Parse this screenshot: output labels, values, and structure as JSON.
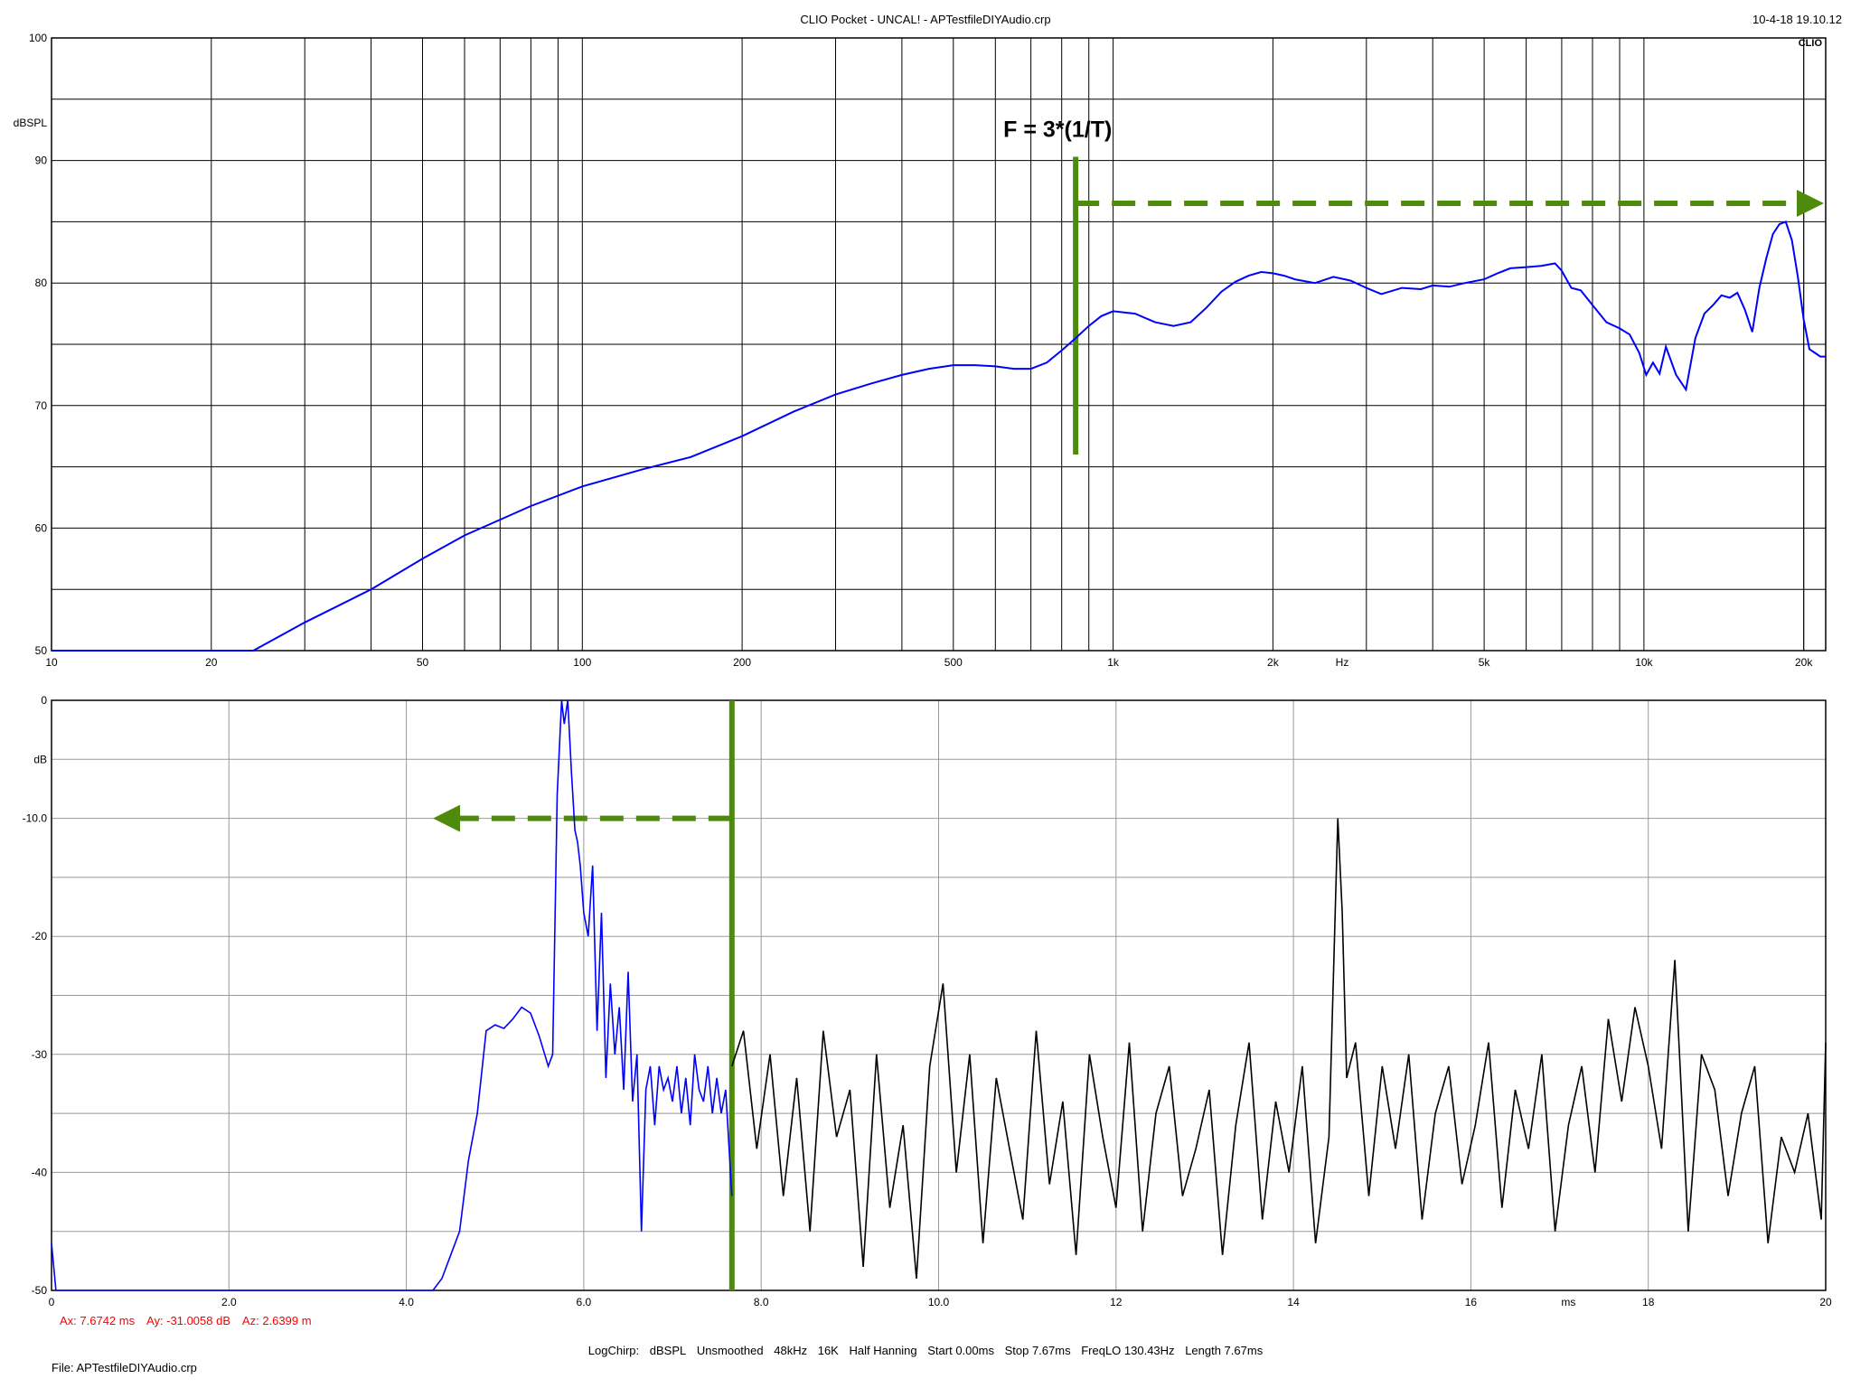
{
  "header": {
    "title": "CLIO Pocket - UNCAL! - APTestfileDIYAudio.crp",
    "datetime": "10-4-18 19.10.12",
    "logo": "CLIO"
  },
  "footer": {
    "params": [
      "LogChirp:",
      "dBSPL",
      "Unsmoothed",
      "48kHz",
      "16K",
      "Half Hanning",
      "Start 0.00ms",
      "Stop 7.67ms",
      "FreqLO 130.43Hz",
      "Length 7.67ms"
    ],
    "file": "File: APTestfileDIYAudio.crp"
  },
  "cursor_readout": {
    "ax": "Ax: 7.6742 ms",
    "ay": "Ay: -31.0058 dB",
    "az": "Az: 2.6399 m"
  },
  "colors": {
    "grid": "#000000",
    "curve": "#0000ff",
    "impulse_after_gate": "#000000",
    "annotation": "#4e8a0b",
    "cursor_text": "#ff0000"
  },
  "chart_data": [
    {
      "type": "line",
      "ylabel": "dBSPL",
      "xlabel": "Hz",
      "x_scale": "log",
      "xlim": [
        10,
        22000
      ],
      "ylim": [
        50,
        100
      ],
      "grid": true,
      "x_tick_labels": [
        {
          "v": 10,
          "t": "10"
        },
        {
          "v": 20,
          "t": "20"
        },
        {
          "v": 50,
          "t": "50"
        },
        {
          "v": 100,
          "t": "100"
        },
        {
          "v": 200,
          "t": "200"
        },
        {
          "v": 500,
          "t": "500"
        },
        {
          "v": 1000,
          "t": "1k"
        },
        {
          "v": 2000,
          "t": "2k"
        },
        {
          "v": 5000,
          "t": "5k"
        },
        {
          "v": 10000,
          "t": "10k"
        },
        {
          "v": 20000,
          "t": "20k"
        }
      ],
      "y_tick_labels": [
        {
          "v": 100,
          "t": "100"
        },
        {
          "v": 90,
          "t": "90"
        },
        {
          "v": 80,
          "t": "80"
        },
        {
          "v": 70,
          "t": "70"
        },
        {
          "v": 60,
          "t": "60"
        },
        {
          "v": 50,
          "t": "50"
        }
      ],
      "annotation": {
        "text": "F = 3*(1/T)",
        "x": 850,
        "y_from": 66,
        "y_to": 90.3,
        "arrow_y": 86.5,
        "arrow_to": 22000
      },
      "series": [
        {
          "x": [
            10,
            24,
            30,
            40,
            50,
            60,
            80,
            100,
            130,
            160,
            200,
            250,
            300,
            350,
            400,
            450,
            500,
            550,
            600,
            650,
            700,
            750,
            800,
            850,
            900,
            950,
            1000,
            1100,
            1200,
            1300,
            1400,
            1500,
            1600,
            1700,
            1800,
            1900,
            2000,
            2100,
            2200,
            2400,
            2600,
            2800,
            3000,
            3200,
            3500,
            3800,
            4000,
            4300,
            4600,
            5000,
            5300,
            5600,
            6000,
            6400,
            6800,
            7000,
            7300,
            7600,
            8000,
            8500,
            9000,
            9400,
            9800,
            10100,
            10400,
            10700,
            11000,
            11500,
            12000,
            12500,
            13000,
            13500,
            14000,
            14500,
            15000,
            15500,
            16000,
            16500,
            17000,
            17500,
            18000,
            18500,
            19000,
            19500,
            20000,
            20500,
            21000,
            21500,
            22000
          ],
          "y": [
            50,
            50,
            52.3,
            55,
            57.5,
            59.4,
            61.8,
            63.4,
            64.8,
            65.8,
            67.5,
            69.5,
            70.9,
            71.8,
            72.5,
            73,
            73.3,
            73.3,
            73.2,
            73.0,
            73.0,
            73.5,
            74.5,
            75.5,
            76.5,
            77.3,
            77.7,
            77.5,
            76.8,
            76.5,
            76.8,
            78,
            79.3,
            80.1,
            80.6,
            80.9,
            80.8,
            80.6,
            80.3,
            80.0,
            80.5,
            80.2,
            79.6,
            79.1,
            79.6,
            79.5,
            79.8,
            79.7,
            80.0,
            80.3,
            80.8,
            81.2,
            81.3,
            81.4,
            81.6,
            81.0,
            79.6,
            79.4,
            78.2,
            76.8,
            76.3,
            75.8,
            74.3,
            72.5,
            73.5,
            72.6,
            74.8,
            72.5,
            71.3,
            75.5,
            77.5,
            78.2,
            79.0,
            78.8,
            79.2,
            77.8,
            76.0,
            79.6,
            82.0,
            84.0,
            84.8,
            85.0,
            83.5,
            80.5,
            77.0,
            74.6,
            74.3,
            74.0,
            74.0
          ]
        }
      ]
    },
    {
      "type": "line",
      "ylabel": "dB",
      "xlabel": "ms",
      "xlim": [
        0,
        20
      ],
      "ylim": [
        -50,
        0
      ],
      "grid": true,
      "x_tick_labels": [
        {
          "v": 0,
          "t": "0"
        },
        {
          "v": 2,
          "t": "2.0"
        },
        {
          "v": 4,
          "t": "4.0"
        },
        {
          "v": 6,
          "t": "6.0"
        },
        {
          "v": 8,
          "t": "8.0"
        },
        {
          "v": 10,
          "t": "10.0"
        },
        {
          "v": 12,
          "t": "12"
        },
        {
          "v": 14,
          "t": "14"
        },
        {
          "v": 16,
          "t": "16"
        },
        {
          "v": 18,
          "t": "18"
        },
        {
          "v": 20,
          "t": "20"
        }
      ],
      "y_tick_labels": [
        {
          "v": 0,
          "t": "0"
        },
        {
          "v": -10,
          "t": "-10.0"
        },
        {
          "v": -20,
          "t": "-20"
        },
        {
          "v": -30,
          "t": "-30"
        },
        {
          "v": -40,
          "t": "-40"
        },
        {
          "v": -50,
          "t": "-50"
        }
      ],
      "gate_ms": 7.67,
      "annotation": {
        "x_from": 7.67,
        "y_level": -10,
        "arrow_to": 4.3
      },
      "series": [
        {
          "name": "gated",
          "x": [
            0,
            0.05,
            0.1,
            4.3,
            4.4,
            4.5,
            4.6,
            4.7,
            4.8,
            4.9,
            5.0,
            5.1,
            5.2,
            5.3,
            5.4,
            5.5,
            5.6,
            5.65,
            5.7,
            5.75,
            5.78,
            5.82,
            5.86,
            5.9,
            5.93,
            5.96,
            6.0,
            6.05,
            6.1,
            6.15,
            6.2,
            6.25,
            6.3,
            6.35,
            6.4,
            6.45,
            6.5,
            6.55,
            6.6,
            6.65,
            6.7,
            6.75,
            6.8,
            6.85,
            6.9,
            6.95,
            7.0,
            7.05,
            7.1,
            7.15,
            7.2,
            7.25,
            7.3,
            7.35,
            7.4,
            7.45,
            7.5,
            7.55,
            7.6,
            7.67
          ],
          "y": [
            -46,
            -50,
            -50,
            -50,
            -49,
            -47,
            -45,
            -39,
            -35,
            -28,
            -27.5,
            -27.8,
            -27,
            -26,
            -26.5,
            -28.5,
            -31,
            -30,
            -8,
            0,
            -2,
            0,
            -6,
            -11,
            -12,
            -14,
            -18,
            -20,
            -14,
            -28,
            -18,
            -32,
            -24,
            -30,
            -26,
            -33,
            -23,
            -34,
            -30,
            -45,
            -33,
            -31,
            -36,
            -31,
            -33,
            -32,
            -34,
            -31,
            -35,
            -32,
            -36,
            -30,
            -33,
            -34,
            -31,
            -35,
            -32,
            -35,
            -33,
            -42
          ]
        },
        {
          "name": "after_gate",
          "x": [
            7.67,
            7.8,
            7.95,
            8.1,
            8.25,
            8.4,
            8.55,
            8.7,
            8.85,
            9.0,
            9.15,
            9.3,
            9.45,
            9.6,
            9.75,
            9.9,
            10.05,
            10.2,
            10.35,
            10.5,
            10.65,
            10.8,
            10.95,
            11.1,
            11.25,
            11.4,
            11.55,
            11.7,
            11.85,
            12.0,
            12.15,
            12.3,
            12.45,
            12.6,
            12.75,
            12.9,
            13.05,
            13.2,
            13.35,
            13.5,
            13.65,
            13.8,
            13.95,
            14.1,
            14.25,
            14.4,
            14.5,
            14.55,
            14.6,
            14.7,
            14.85,
            15.0,
            15.15,
            15.3,
            15.45,
            15.6,
            15.75,
            15.9,
            16.05,
            16.2,
            16.35,
            16.5,
            16.65,
            16.8,
            16.95,
            17.1,
            17.25,
            17.4,
            17.55,
            17.7,
            17.85,
            18.0,
            18.15,
            18.3,
            18.45,
            18.6,
            18.75,
            18.9,
            19.05,
            19.2,
            19.35,
            19.5,
            19.65,
            19.8,
            19.95,
            20.0
          ],
          "y": [
            -31,
            -28,
            -38,
            -30,
            -42,
            -32,
            -45,
            -28,
            -37,
            -33,
            -48,
            -30,
            -43,
            -36,
            -49,
            -31,
            -24,
            -40,
            -30,
            -46,
            -32,
            -38,
            -44,
            -28,
            -41,
            -34,
            -47,
            -30,
            -37,
            -43,
            -29,
            -45,
            -35,
            -31,
            -42,
            -38,
            -33,
            -47,
            -36,
            -29,
            -44,
            -34,
            -40,
            -31,
            -46,
            -37,
            -10,
            -18,
            -32,
            -29,
            -42,
            -31,
            -38,
            -30,
            -44,
            -35,
            -31,
            -41,
            -36,
            -29,
            -43,
            -33,
            -38,
            -30,
            -45,
            -36,
            -31,
            -40,
            -27,
            -34,
            -26,
            -31,
            -38,
            -22,
            -45,
            -30,
            -33,
            -42,
            -35,
            -31,
            -46,
            -37,
            -40,
            -35,
            -44,
            -29
          ]
        }
      ]
    }
  ]
}
